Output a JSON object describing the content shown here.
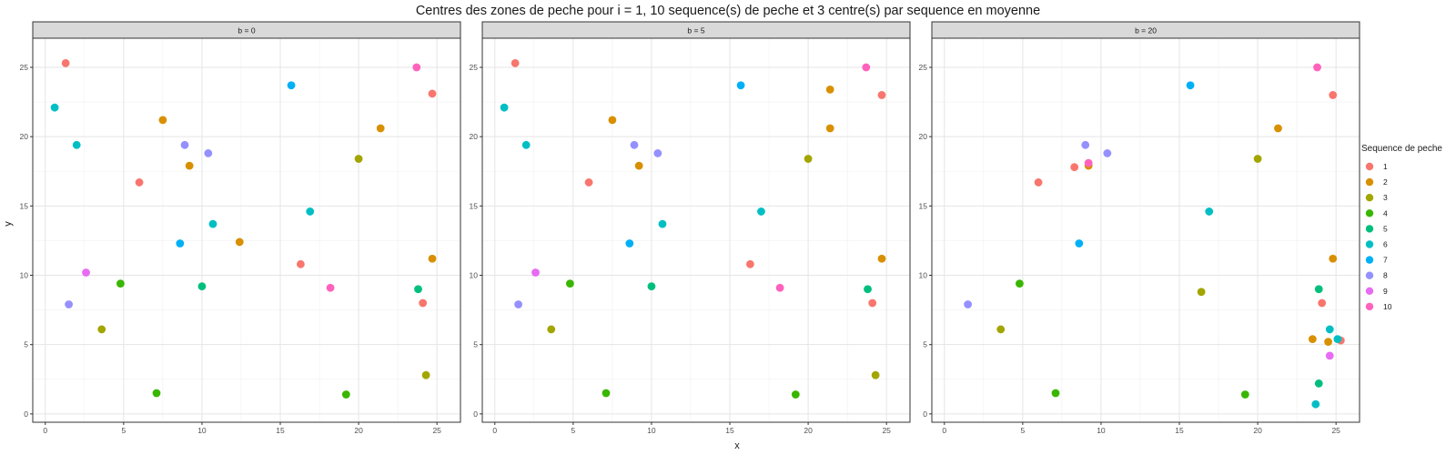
{
  "chart_data": {
    "type": "scatter",
    "title": "Centres des zones de peche pour i = 1, 10 sequence(s) de peche et 3 centre(s) par sequence en moyenne",
    "xlabel": "x",
    "ylabel": "y",
    "xlim": [
      -0.8,
      26.5
    ],
    "ylim": [
      -0.6,
      27.1
    ],
    "x_ticks": [
      0,
      5,
      10,
      15,
      20,
      25
    ],
    "y_ticks": [
      0,
      5,
      10,
      15,
      20,
      25
    ],
    "grid": true,
    "legend": {
      "title": "Sequence de peche",
      "position": "right",
      "entries": [
        {
          "name": "1",
          "color": "#F8766D"
        },
        {
          "name": "2",
          "color": "#D89000"
        },
        {
          "name": "3",
          "color": "#A3A500"
        },
        {
          "name": "4",
          "color": "#39B600"
        },
        {
          "name": "5",
          "color": "#00BF7D"
        },
        {
          "name": "6",
          "color": "#00BFC4"
        },
        {
          "name": "7",
          "color": "#00B0F6"
        },
        {
          "name": "8",
          "color": "#9590FF"
        },
        {
          "name": "9",
          "color": "#E76BF3"
        },
        {
          "name": "10",
          "color": "#FF62BC"
        }
      ]
    },
    "panels": [
      {
        "label": "b = 0",
        "points": [
          {
            "x": 1.3,
            "y": 25.3,
            "s": "1"
          },
          {
            "x": 6.0,
            "y": 16.7,
            "s": "1"
          },
          {
            "x": 16.3,
            "y": 10.8,
            "s": "1"
          },
          {
            "x": 24.1,
            "y": 8.0,
            "s": "1"
          },
          {
            "x": 24.7,
            "y": 23.1,
            "s": "1"
          },
          {
            "x": 7.5,
            "y": 21.2,
            "s": "2"
          },
          {
            "x": 9.2,
            "y": 17.9,
            "s": "2"
          },
          {
            "x": 12.4,
            "y": 12.4,
            "s": "2"
          },
          {
            "x": 21.4,
            "y": 20.6,
            "s": "2"
          },
          {
            "x": 24.7,
            "y": 11.2,
            "s": "2"
          },
          {
            "x": 3.6,
            "y": 6.1,
            "s": "3"
          },
          {
            "x": 20.0,
            "y": 18.4,
            "s": "3"
          },
          {
            "x": 24.3,
            "y": 2.8,
            "s": "3"
          },
          {
            "x": 4.8,
            "y": 9.4,
            "s": "4"
          },
          {
            "x": 7.1,
            "y": 1.5,
            "s": "4"
          },
          {
            "x": 19.2,
            "y": 1.4,
            "s": "4"
          },
          {
            "x": 10.0,
            "y": 9.2,
            "s": "5"
          },
          {
            "x": 23.8,
            "y": 9.0,
            "s": "5"
          },
          {
            "x": 0.6,
            "y": 22.1,
            "s": "6"
          },
          {
            "x": 2.0,
            "y": 19.4,
            "s": "6"
          },
          {
            "x": 10.7,
            "y": 13.7,
            "s": "6"
          },
          {
            "x": 16.9,
            "y": 14.6,
            "s": "6"
          },
          {
            "x": 8.6,
            "y": 12.3,
            "s": "7"
          },
          {
            "x": 15.7,
            "y": 23.7,
            "s": "7"
          },
          {
            "x": 1.5,
            "y": 7.9,
            "s": "8"
          },
          {
            "x": 8.9,
            "y": 19.4,
            "s": "8"
          },
          {
            "x": 10.4,
            "y": 18.8,
            "s": "8"
          },
          {
            "x": 2.6,
            "y": 10.2,
            "s": "9"
          },
          {
            "x": 18.2,
            "y": 9.1,
            "s": "10"
          },
          {
            "x": 23.7,
            "y": 25.0,
            "s": "10"
          }
        ]
      },
      {
        "label": "b = 5",
        "points": [
          {
            "x": 1.3,
            "y": 25.3,
            "s": "1"
          },
          {
            "x": 6.0,
            "y": 16.7,
            "s": "1"
          },
          {
            "x": 16.3,
            "y": 10.8,
            "s": "1"
          },
          {
            "x": 24.1,
            "y": 8.0,
            "s": "1"
          },
          {
            "x": 24.7,
            "y": 23.0,
            "s": "1"
          },
          {
            "x": 7.5,
            "y": 21.2,
            "s": "2"
          },
          {
            "x": 9.2,
            "y": 17.9,
            "s": "2"
          },
          {
            "x": 21.4,
            "y": 23.4,
            "s": "2"
          },
          {
            "x": 21.4,
            "y": 20.6,
            "s": "2"
          },
          {
            "x": 24.7,
            "y": 11.2,
            "s": "2"
          },
          {
            "x": 3.6,
            "y": 6.1,
            "s": "3"
          },
          {
            "x": 20.0,
            "y": 18.4,
            "s": "3"
          },
          {
            "x": 24.3,
            "y": 2.8,
            "s": "3"
          },
          {
            "x": 4.8,
            "y": 9.4,
            "s": "4"
          },
          {
            "x": 7.1,
            "y": 1.5,
            "s": "4"
          },
          {
            "x": 19.2,
            "y": 1.4,
            "s": "4"
          },
          {
            "x": 10.0,
            "y": 9.2,
            "s": "5"
          },
          {
            "x": 23.8,
            "y": 9.0,
            "s": "5"
          },
          {
            "x": 0.6,
            "y": 22.1,
            "s": "6"
          },
          {
            "x": 2.0,
            "y": 19.4,
            "s": "6"
          },
          {
            "x": 10.7,
            "y": 13.7,
            "s": "6"
          },
          {
            "x": 17.0,
            "y": 14.6,
            "s": "6"
          },
          {
            "x": 8.6,
            "y": 12.3,
            "s": "7"
          },
          {
            "x": 15.7,
            "y": 23.7,
            "s": "7"
          },
          {
            "x": 1.5,
            "y": 7.9,
            "s": "8"
          },
          {
            "x": 8.9,
            "y": 19.4,
            "s": "8"
          },
          {
            "x": 10.4,
            "y": 18.8,
            "s": "8"
          },
          {
            "x": 2.6,
            "y": 10.2,
            "s": "9"
          },
          {
            "x": 18.2,
            "y": 9.1,
            "s": "10"
          },
          {
            "x": 23.7,
            "y": 25.0,
            "s": "10"
          }
        ]
      },
      {
        "label": "b = 20",
        "points": [
          {
            "x": 6.0,
            "y": 16.7,
            "s": "1"
          },
          {
            "x": 8.3,
            "y": 17.8,
            "s": "1"
          },
          {
            "x": 24.1,
            "y": 8.0,
            "s": "1"
          },
          {
            "x": 24.8,
            "y": 23.0,
            "s": "1"
          },
          {
            "x": 25.3,
            "y": 5.3,
            "s": "1"
          },
          {
            "x": 9.2,
            "y": 17.9,
            "s": "2"
          },
          {
            "x": 21.3,
            "y": 20.6,
            "s": "2"
          },
          {
            "x": 23.5,
            "y": 5.4,
            "s": "2"
          },
          {
            "x": 24.5,
            "y": 5.2,
            "s": "2"
          },
          {
            "x": 24.8,
            "y": 11.2,
            "s": "2"
          },
          {
            "x": 3.6,
            "y": 6.1,
            "s": "3"
          },
          {
            "x": 16.4,
            "y": 8.8,
            "s": "3"
          },
          {
            "x": 20.0,
            "y": 18.4,
            "s": "3"
          },
          {
            "x": 4.8,
            "y": 9.4,
            "s": "4"
          },
          {
            "x": 7.1,
            "y": 1.5,
            "s": "4"
          },
          {
            "x": 19.2,
            "y": 1.4,
            "s": "4"
          },
          {
            "x": 23.9,
            "y": 9.0,
            "s": "5"
          },
          {
            "x": 23.9,
            "y": 2.2,
            "s": "5"
          },
          {
            "x": 16.9,
            "y": 14.6,
            "s": "6"
          },
          {
            "x": 23.7,
            "y": 0.7,
            "s": "6"
          },
          {
            "x": 24.6,
            "y": 6.1,
            "s": "6"
          },
          {
            "x": 25.1,
            "y": 5.4,
            "s": "6"
          },
          {
            "x": 8.6,
            "y": 12.3,
            "s": "7"
          },
          {
            "x": 15.7,
            "y": 23.7,
            "s": "7"
          },
          {
            "x": 1.5,
            "y": 7.9,
            "s": "8"
          },
          {
            "x": 9.0,
            "y": 19.4,
            "s": "8"
          },
          {
            "x": 10.4,
            "y": 18.8,
            "s": "8"
          },
          {
            "x": 24.6,
            "y": 4.2,
            "s": "9"
          },
          {
            "x": 9.2,
            "y": 18.1,
            "s": "10"
          },
          {
            "x": 23.8,
            "y": 25.0,
            "s": "10"
          }
        ]
      }
    ]
  }
}
